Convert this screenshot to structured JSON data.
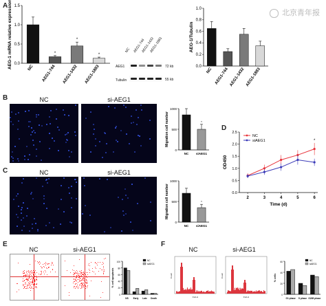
{
  "watermark": "北京青年报",
  "panels": {
    "A": "A",
    "B": "B",
    "C": "C",
    "D": "D",
    "E": "E",
    "F": "F"
  },
  "blot": {
    "lanes": [
      "NC",
      "AEG1-744",
      "AEG1-1432",
      "AEG1-1883"
    ],
    "rows": [
      "AEG1",
      "Tubulin"
    ],
    "sizes": [
      "72 kb",
      "55 kb"
    ]
  },
  "micro": {
    "B": {
      "nc": "NC",
      "si": "si-AEG1"
    },
    "C": {
      "nc": "NC",
      "si": "si-AEG1"
    }
  },
  "flow_labels": {
    "nc": "NC",
    "si": "si-AEG1"
  },
  "cycle_labels": {
    "nc": "NC",
    "si": "si-AEG1"
  },
  "chart_data": [
    {
      "id": "A-mrna",
      "type": "bar",
      "ylabel": "AEG-1 mRNA relative expression",
      "categories": [
        "NC",
        "AEG1-744",
        "AEG1-1432",
        "AEG1-1883"
      ],
      "values": [
        1.0,
        0.17,
        0.45,
        0.13
      ],
      "errors": [
        0.2,
        0.03,
        0.1,
        0.03
      ],
      "annotations": [
        "",
        "*",
        "*",
        "*"
      ],
      "ylim": [
        0,
        1.5
      ],
      "yticks": [
        "0.0",
        "0.5",
        "1.0",
        "1.5"
      ],
      "colors": [
        "#111111",
        "#555555",
        "#7a7a7a",
        "#d8d8d8"
      ]
    },
    {
      "id": "A-tubulin",
      "type": "bar",
      "ylabel": "AEG-1/Tubulin",
      "categories": [
        "NC",
        "AEG1-744",
        "AEG1-1432",
        "AEG1-1883"
      ],
      "values": [
        0.65,
        0.25,
        0.55,
        0.35
      ],
      "errors": [
        0.12,
        0.05,
        0.1,
        0.08
      ],
      "ylim": [
        0,
        1.0
      ],
      "yticks": [
        "0.0",
        "0.2",
        "0.4",
        "0.6",
        "0.8",
        "1.0"
      ],
      "colors": [
        "#111111",
        "#555555",
        "#7a7a7a",
        "#d8d8d8"
      ]
    },
    {
      "id": "B-migration",
      "type": "bar",
      "ylabel": "Migration cell number",
      "categories": [
        "NC",
        "siAEG1"
      ],
      "values": [
        850,
        500
      ],
      "errors": [
        150,
        120
      ],
      "annotations": [
        "",
        "*"
      ],
      "ylim": [
        0,
        1000
      ],
      "yticks": [
        "0",
        "500",
        "1000"
      ],
      "colors": [
        "#111111",
        "#999999"
      ]
    },
    {
      "id": "C-migration",
      "type": "bar",
      "ylabel": "Migration cell number",
      "categories": [
        "NC",
        "siAEG1"
      ],
      "values": [
        700,
        350
      ],
      "errors": [
        120,
        80
      ],
      "annotations": [
        "",
        "*"
      ],
      "ylim": [
        0,
        1000
      ],
      "yticks": [
        "0",
        "500",
        "1000"
      ],
      "colors": [
        "#111111",
        "#999999"
      ]
    },
    {
      "id": "D-growth",
      "type": "line",
      "xlabel": "Time (d)",
      "ylabel": "OD450",
      "x": [
        2,
        3,
        4,
        5,
        6
      ],
      "xticks": [
        "2",
        "3",
        "4",
        "5",
        "6"
      ],
      "ylim": [
        0,
        2.5
      ],
      "yticks": [
        "0.0",
        "0.5",
        "1.0",
        "1.5",
        "2.0",
        "2.5"
      ],
      "series": [
        {
          "name": "NC",
          "values": [
            0.7,
            1.0,
            1.35,
            1.55,
            1.8
          ],
          "errors": [
            0.1,
            0.15,
            0.2,
            0.2,
            0.25
          ],
          "color": "#e8333a"
        },
        {
          "name": "siAEG1",
          "values": [
            0.68,
            0.85,
            1.05,
            1.35,
            1.25
          ],
          "errors": [
            0.08,
            0.12,
            0.15,
            0.2,
            0.15
          ],
          "color": "#3a3ab8"
        }
      ],
      "annotations": [
        "",
        "",
        "",
        "",
        "*"
      ],
      "legend": "top-left"
    },
    {
      "id": "E-apoptosis",
      "type": "bar",
      "ylabel": "% cell apoptosis",
      "categories": [
        "NS",
        "Early",
        "Late",
        "Death"
      ],
      "ylim": [
        0,
        100
      ],
      "yticks": [
        "0",
        "20",
        "40",
        "60",
        "80",
        "100"
      ],
      "series": [
        {
          "name": "NC",
          "values": [
            80,
            8,
            10,
            3
          ],
          "color": "#111111"
        },
        {
          "name": "siAEG1",
          "values": [
            72,
            18,
            14,
            3
          ],
          "color": "#aaaaaa"
        }
      ],
      "legend": "top-right"
    },
    {
      "id": "F-cellcycle",
      "type": "bar",
      "ylabel": "% cells",
      "categories": [
        "G1 phase",
        "S phase",
        "G2/M phase"
      ],
      "ylim": [
        0,
        60
      ],
      "yticks": [
        "0",
        "20",
        "40",
        "60"
      ],
      "series": [
        {
          "name": "NC",
          "values": [
            42,
            20,
            35
          ],
          "color": "#111111"
        },
        {
          "name": "siAEG1",
          "values": [
            45,
            16,
            32
          ],
          "color": "#aaaaaa"
        }
      ],
      "legend": "top-right"
    }
  ]
}
